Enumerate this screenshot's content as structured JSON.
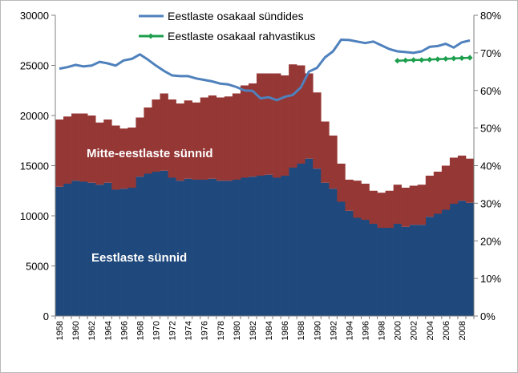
{
  "chart_data": {
    "type": "bar",
    "stacked": true,
    "x": [
      1958,
      1959,
      1960,
      1961,
      1962,
      1963,
      1964,
      1965,
      1966,
      1967,
      1968,
      1969,
      1970,
      1971,
      1972,
      1973,
      1974,
      1975,
      1976,
      1977,
      1978,
      1979,
      1980,
      1981,
      1982,
      1983,
      1984,
      1985,
      1986,
      1987,
      1988,
      1989,
      1990,
      1991,
      1992,
      1993,
      1994,
      1995,
      1996,
      1997,
      1998,
      1999,
      2000,
      2001,
      2002,
      2003,
      2004,
      2005,
      2006,
      2007,
      2008,
      2009
    ],
    "x_tick_labels": [
      "1958",
      "1960",
      "1962",
      "1964",
      "1966",
      "1968",
      "1970",
      "1972",
      "1974",
      "1976",
      "1978",
      "1980",
      "1982",
      "1984",
      "1986",
      "1988",
      "1990",
      "1992",
      "1994",
      "1996",
      "1998",
      "2000",
      "2002",
      "2004",
      "2006",
      "2008"
    ],
    "y_left_ticks": [
      "0",
      "5000",
      "10000",
      "15000",
      "20000",
      "25000",
      "30000"
    ],
    "y_right_ticks": [
      "0%",
      "10%",
      "20%",
      "30%",
      "40%",
      "50%",
      "60%",
      "70%",
      "80%"
    ],
    "ylim_left": [
      0,
      30000
    ],
    "ylim_right": [
      0,
      80
    ],
    "series": [
      {
        "key": "estonian_births",
        "type": "bar",
        "color": "#1f497d",
        "values": [
          12900,
          13200,
          13500,
          13400,
          13300,
          13100,
          13300,
          12600,
          12700,
          12800,
          13900,
          14200,
          14400,
          14500,
          13800,
          13500,
          13700,
          13600,
          13600,
          13700,
          13500,
          13500,
          13600,
          13800,
          13900,
          14000,
          14100,
          13800,
          14000,
          14800,
          15200,
          15700,
          14700,
          13300,
          12700,
          11400,
          10500,
          9800,
          9600,
          9200,
          8800,
          8800,
          9200,
          8900,
          9100,
          9100,
          9900,
          10200,
          10600,
          11200,
          11500,
          11300
        ]
      },
      {
        "key": "non_estonian_births",
        "type": "bar",
        "color": "#953735",
        "values": [
          6700,
          6700,
          6700,
          6800,
          6700,
          6200,
          6300,
          6400,
          6000,
          6000,
          5900,
          6600,
          7200,
          7700,
          7800,
          7700,
          7800,
          7700,
          8200,
          8300,
          8300,
          8400,
          8600,
          9200,
          9300,
          10200,
          10100,
          10400,
          10000,
          10300,
          9800,
          8500,
          7600,
          6100,
          5300,
          3800,
          3100,
          3700,
          3600,
          3300,
          3500,
          3700,
          3900,
          3900,
          3900,
          4000,
          4100,
          4200,
          4400,
          4600,
          4500,
          4400
        ]
      },
      {
        "key": "share_of_births",
        "name": "Eestlaste osakaal sündides",
        "type": "line",
        "axis": "right",
        "color": "#4f81bd",
        "values": [
          65.8,
          66.2,
          66.8,
          66.4,
          66.6,
          67.6,
          67.2,
          66.6,
          68.0,
          68.4,
          69.6,
          68.2,
          66.6,
          65.2,
          64.0,
          63.8,
          63.8,
          63.2,
          62.8,
          62.4,
          61.8,
          61.6,
          60.9,
          60.0,
          59.9,
          57.9,
          58.2,
          57.4,
          58.3,
          58.8,
          60.8,
          65.0,
          66.0,
          68.8,
          70.4,
          73.5,
          73.4,
          73.0,
          72.6,
          73.0,
          72.0,
          71.0,
          70.4,
          70.2,
          70.0,
          70.4,
          71.6,
          71.8,
          72.4,
          71.4,
          72.8,
          73.3
        ]
      },
      {
        "key": "share_of_population",
        "name": "Eestlaste osakaal rahvastikus",
        "type": "line",
        "axis": "right",
        "color": "#1d9e4d",
        "x": [
          2000,
          2001,
          2002,
          2003,
          2004,
          2005,
          2006,
          2007,
          2008,
          2009
        ],
        "values": [
          67.9,
          68.0,
          68.1,
          68.1,
          68.2,
          68.3,
          68.4,
          68.5,
          68.6,
          68.7
        ]
      }
    ],
    "labels": {
      "estonian_births": "Eestlaste sünnid",
      "non_estonian_births": "Mitte-eestlaste sünnid"
    },
    "legend": {
      "placement": "top-center",
      "entries": [
        "Eestlaste osakaal sündides",
        "Eestlaste osakaal rahvastikus"
      ]
    },
    "grid": false
  }
}
